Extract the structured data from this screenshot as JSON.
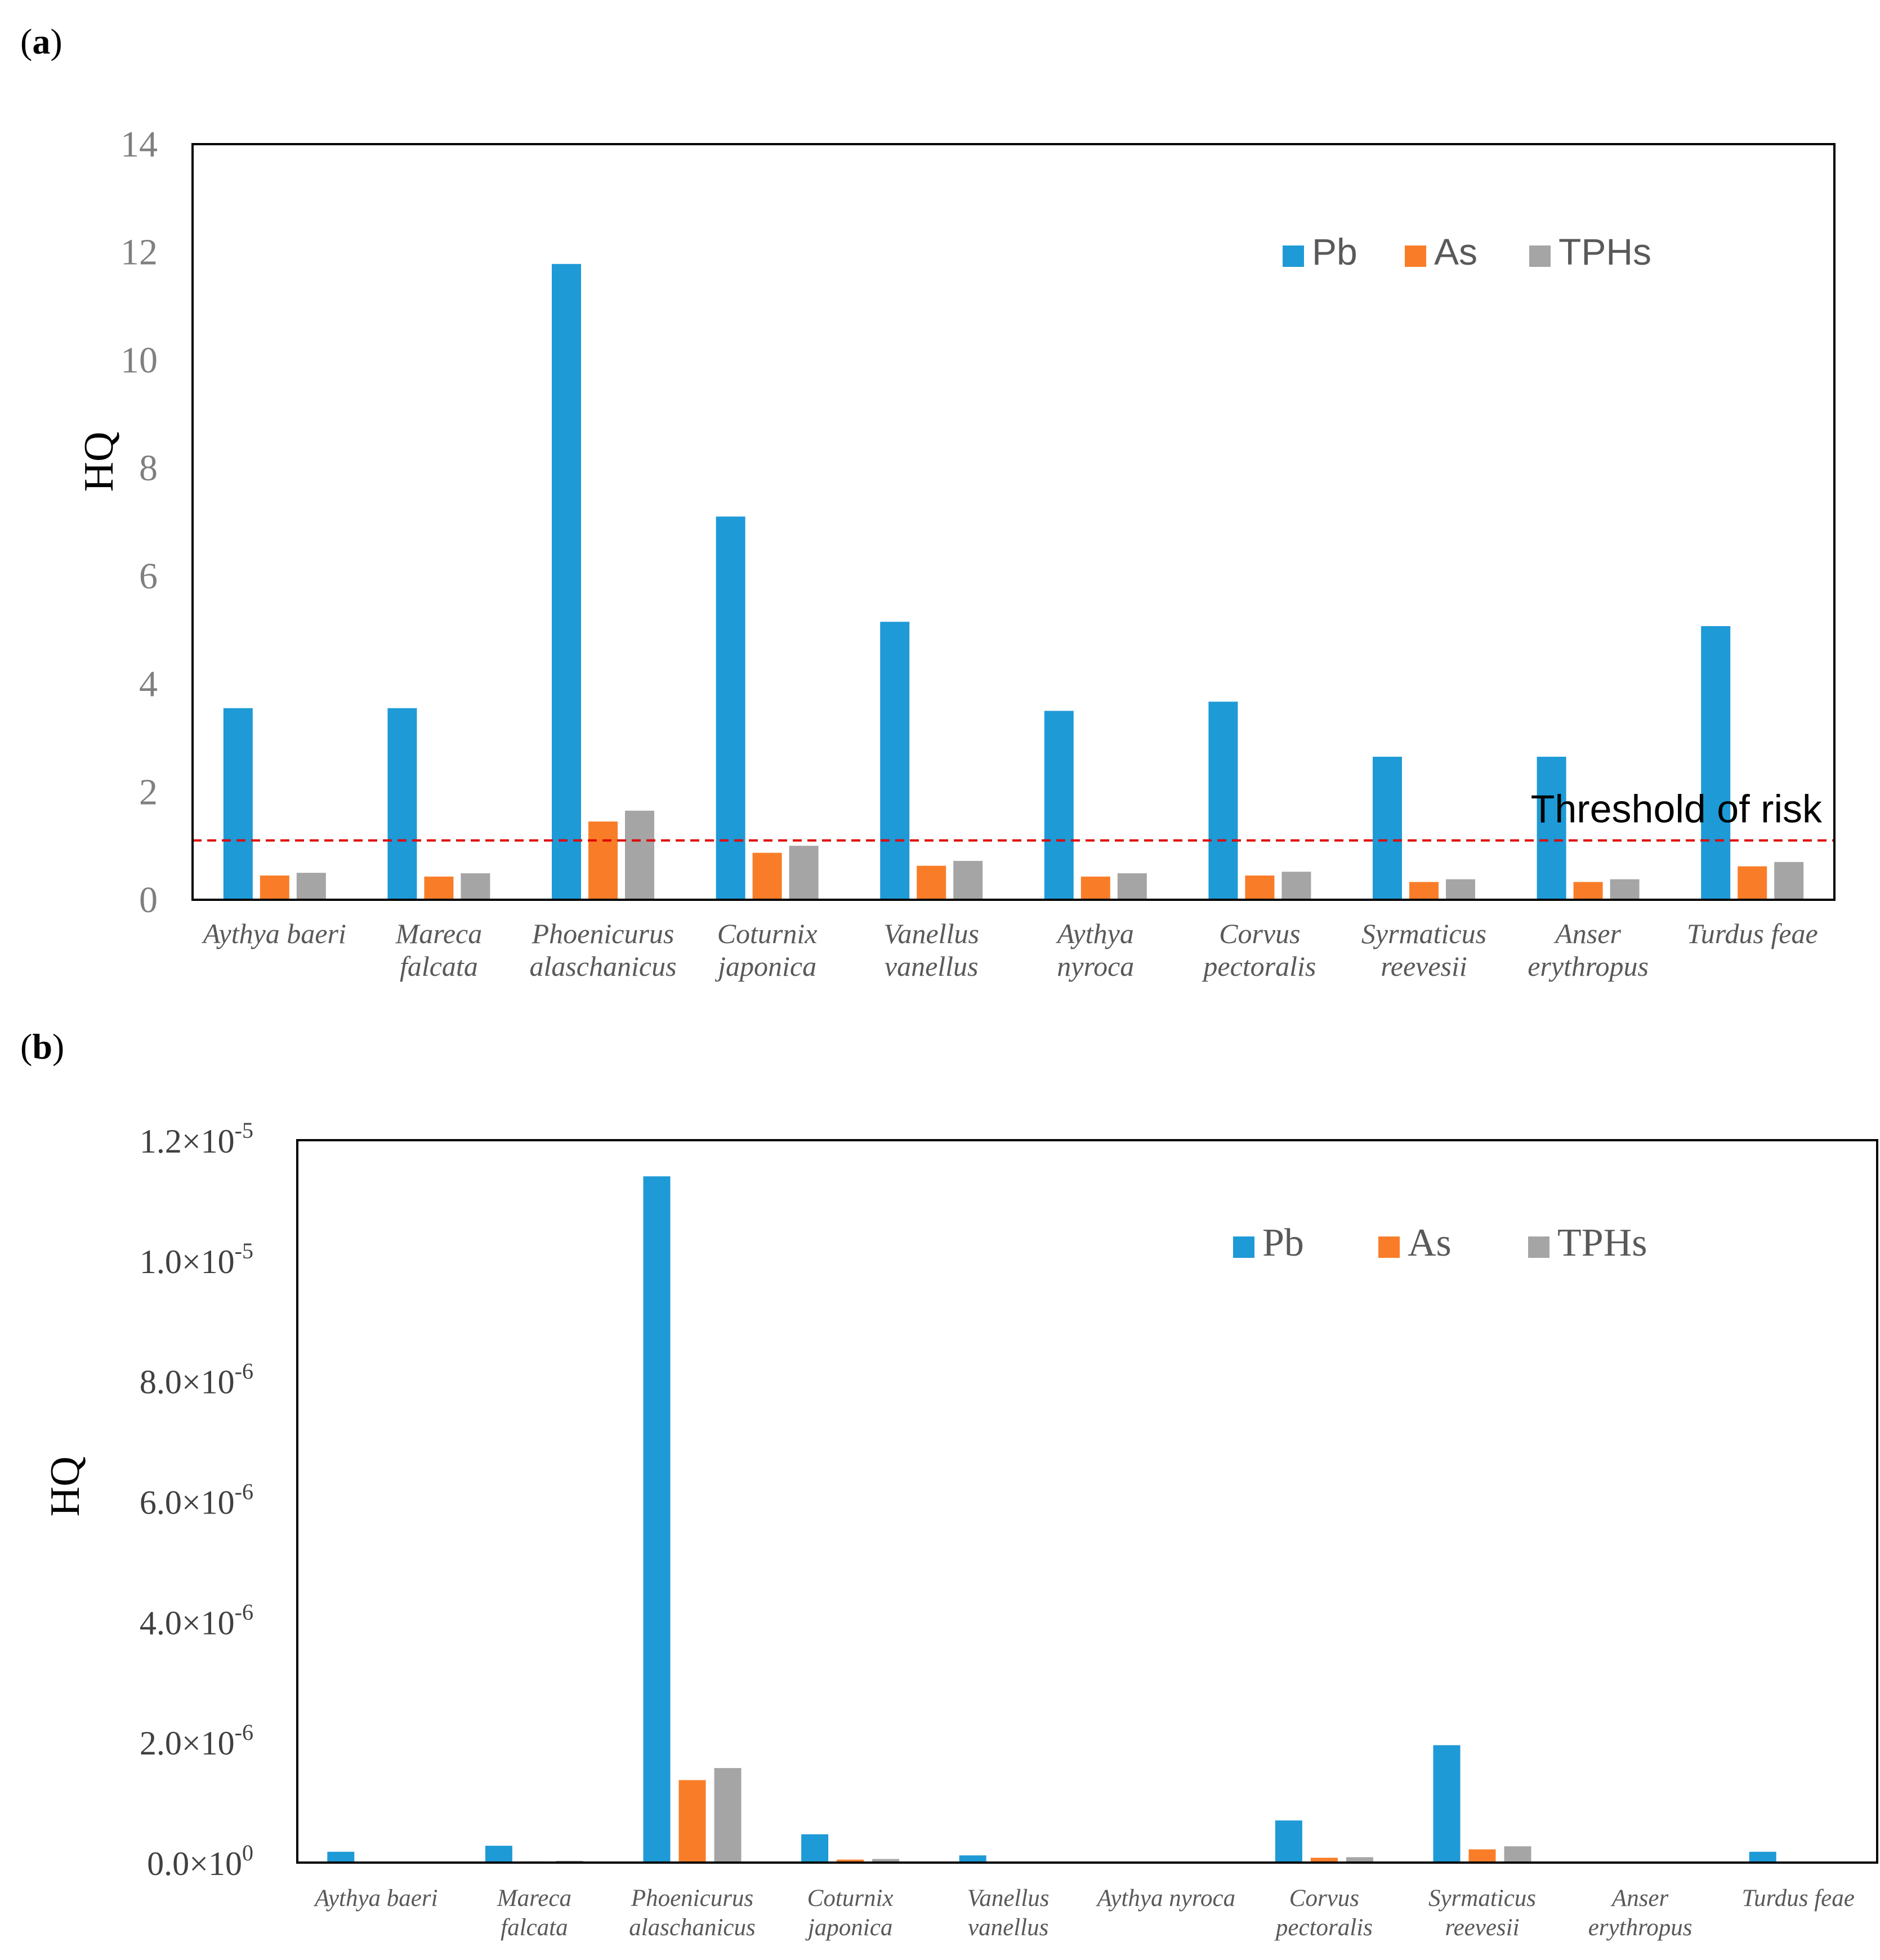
{
  "colors": {
    "Pb": "#1e9ad6",
    "As": "#f97d28",
    "TPHs": "#a5a5a5",
    "threshold": "#e00000",
    "axis": "#000000"
  },
  "chart_data": [
    {
      "panel": "(a)",
      "panel_letter": "a",
      "type": "bar",
      "ylabel": "HQ",
      "ylim": [
        0,
        14
      ],
      "ytick_labels": [
        "0",
        "2",
        "4",
        "6",
        "8",
        "10",
        "12",
        "14"
      ],
      "categories": [
        [
          "Aythya baeri"
        ],
        [
          "Mareca",
          "falcata"
        ],
        [
          "Phoenicurus",
          "alaschanicus"
        ],
        [
          "Coturnix",
          "japonica"
        ],
        [
          "Vanellus",
          "vanellus"
        ],
        [
          "Aythya",
          "nyroca"
        ],
        [
          "Corvus",
          "pectoralis"
        ],
        [
          "Syrmaticus",
          "reevesii"
        ],
        [
          "Anser",
          "erythropus"
        ],
        [
          "Turdus feae"
        ]
      ],
      "series": [
        {
          "name": "Pb",
          "values": [
            3.55,
            3.55,
            11.78,
            7.1,
            5.15,
            3.5,
            3.67,
            2.65,
            2.65,
            5.07
          ]
        },
        {
          "name": "As",
          "values": [
            0.45,
            0.43,
            1.45,
            0.87,
            0.63,
            0.43,
            0.45,
            0.33,
            0.33,
            0.62
          ]
        },
        {
          "name": "TPHs",
          "values": [
            0.5,
            0.49,
            1.65,
            1.0,
            0.72,
            0.49,
            0.52,
            0.38,
            0.38,
            0.7
          ]
        }
      ],
      "threshold": {
        "label": "Threshold of risk",
        "value": 1.1
      },
      "legend": [
        "Pb",
        "As",
        "TPHs"
      ],
      "legend_position": "top-right"
    },
    {
      "panel": "(b)",
      "panel_letter": "b",
      "type": "bar",
      "ylabel": "HQ",
      "ylim": [
        0,
        1.2e-05
      ],
      "ytick_labels": [
        {
          "mantissa": "0.0×10",
          "exp": "0"
        },
        {
          "mantissa": "2.0×10",
          "exp": "-6"
        },
        {
          "mantissa": "4.0×10",
          "exp": "-6"
        },
        {
          "mantissa": "6.0×10",
          "exp": "-6"
        },
        {
          "mantissa": "8.0×10",
          "exp": "-6"
        },
        {
          "mantissa": "1.0×10",
          "exp": "-5"
        },
        {
          "mantissa": "1.2×10",
          "exp": "-5"
        }
      ],
      "categories": [
        [
          "Aythya baeri"
        ],
        [
          "Mareca",
          "falcata"
        ],
        [
          "Phoenicurus",
          "alaschanicus"
        ],
        [
          "Coturnix",
          "japonica"
        ],
        [
          "Vanellus",
          "vanellus"
        ],
        [
          "Aythya nyroca"
        ],
        [
          "Corvus",
          "pectoralis"
        ],
        [
          "Syrmaticus",
          "reevesii"
        ],
        [
          "Anser",
          "erythropus"
        ],
        [
          "Turdus feae"
        ]
      ],
      "series": [
        {
          "name": "Pb",
          "values": [
            1.8e-07,
            2.8e-07,
            1.14e-05,
            4.7e-07,
            1.2e-07,
            0,
            7e-07,
            1.95e-06,
            0,
            1.8e-07
          ]
        },
        {
          "name": "As",
          "values": [
            1e-08,
            2e-08,
            1.37e-06,
            5e-08,
            0,
            0,
            8e-08,
            2.2e-07,
            0,
            1e-08
          ]
        },
        {
          "name": "TPHs",
          "values": [
            1e-08,
            3e-08,
            1.57e-06,
            6e-08,
            0,
            0,
            9e-08,
            2.7e-07,
            0,
            1e-08
          ]
        }
      ],
      "legend": [
        "Pb",
        "As",
        "TPHs"
      ],
      "legend_position": "top-right"
    }
  ]
}
